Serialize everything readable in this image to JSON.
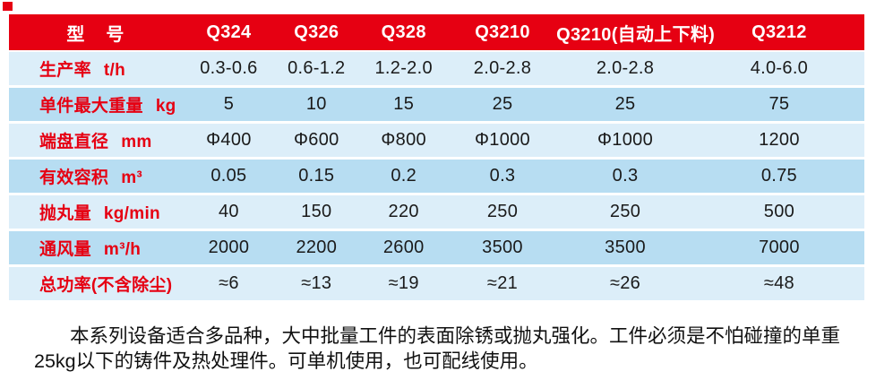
{
  "colors": {
    "header_red": "#e60012",
    "label_red": "#e60012",
    "row_light_blue": "#dceef9",
    "row_dark_blue": "#b7ddf2",
    "value_text": "#1a1a1a"
  },
  "table": {
    "header": {
      "label": "型　号",
      "models": [
        "Q324",
        "Q326",
        "Q328",
        "Q3210",
        "Q3210(自动上下料)",
        "Q3212"
      ]
    },
    "rows": [
      {
        "label": "生产率",
        "unit": "t/h",
        "values": [
          "0.3-0.6",
          "0.6-1.2",
          "1.2-2.0",
          "2.0-2.8",
          "2.0-2.8",
          "4.0-6.0"
        ]
      },
      {
        "label": "单件最大重量",
        "unit": "kg",
        "values": [
          "5",
          "10",
          "15",
          "25",
          "25",
          "75"
        ]
      },
      {
        "label": "端盘直径",
        "unit": "mm",
        "values": [
          "Φ400",
          "Φ600",
          "Φ800",
          "Φ1000",
          "Φ1000",
          "1200"
        ]
      },
      {
        "label": "有效容积",
        "unit": "m³",
        "values": [
          "0.05",
          "0.15",
          "0.2",
          "0.3",
          "0.3",
          "0.75"
        ]
      },
      {
        "label": "抛丸量",
        "unit": "kg/min",
        "values": [
          "40",
          "150",
          "220",
          "250",
          "250",
          "500"
        ]
      },
      {
        "label": "通风量",
        "unit": "m³/h",
        "values": [
          "2000",
          "2200",
          "2600",
          "3500",
          "3500",
          "7000"
        ]
      },
      {
        "label": "总功率(不含除尘)",
        "unit": "",
        "values": [
          "≈6",
          "≈13",
          "≈19",
          "≈21",
          "≈26",
          "≈48"
        ]
      }
    ]
  },
  "description": {
    "lines": [
      "本系列设备适合多品种，大中批量工件的表面除锈或抛丸强化。工件必须是不怕碰撞的单重",
      "25kg以下的铸件及热处理件。可单机使用，也可配线使用。"
    ]
  }
}
